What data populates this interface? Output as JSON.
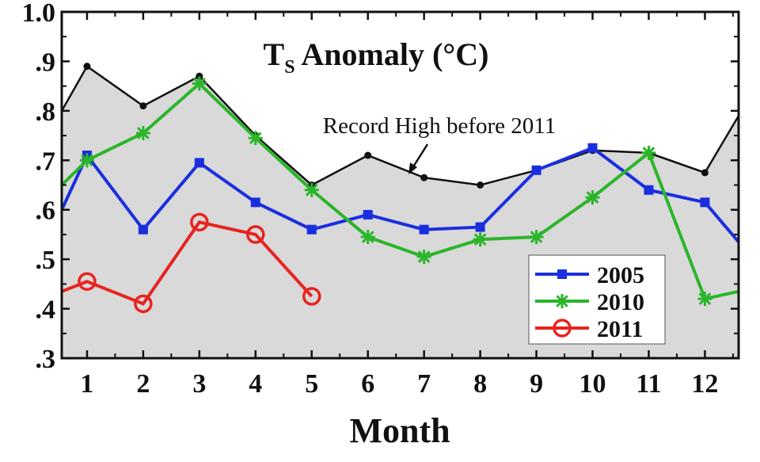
{
  "chart_data": {
    "type": "line",
    "title": {
      "prefix": "T",
      "subscript": "S",
      "suffix": " Anomaly (°C)"
    },
    "xlabel": "Month",
    "ylabel": "",
    "xlim": [
      0.55,
      12.6
    ],
    "ylim": [
      0.3,
      1.0
    ],
    "yticks": [
      0.3,
      0.4,
      0.5,
      0.6,
      0.7,
      0.8,
      0.9,
      1.0
    ],
    "ytick_labels": [
      ".3",
      ".4",
      ".5",
      ".6",
      ".7",
      ".8",
      ".9",
      "1.0"
    ],
    "xticks": [
      1,
      2,
      3,
      4,
      5,
      6,
      7,
      8,
      9,
      10,
      11,
      12
    ],
    "xtick_labels": [
      "1",
      "2",
      "3",
      "4",
      "5",
      "6",
      "7",
      "8",
      "9",
      "10",
      "11",
      "12"
    ],
    "annotation": "Record High before 2011",
    "legend_position": "bottom-right",
    "record_high": {
      "x": [
        0.55,
        1,
        2,
        3,
        4,
        5,
        6,
        7,
        8,
        9,
        10,
        11,
        12,
        12.6
      ],
      "y": [
        0.8,
        0.89,
        0.81,
        0.87,
        0.75,
        0.65,
        0.71,
        0.665,
        0.65,
        0.68,
        0.72,
        0.715,
        0.675,
        0.79
      ],
      "line_color": "#111111",
      "fill_color": "#d9d9d9"
    },
    "series": [
      {
        "name": "2005",
        "color": "#1a2ee0",
        "marker": "square",
        "x": [
          0.55,
          1,
          2,
          3,
          4,
          5,
          6,
          7,
          8,
          9,
          10,
          11,
          12,
          12.6
        ],
        "y": [
          0.6,
          0.71,
          0.56,
          0.695,
          0.615,
          0.56,
          0.59,
          0.56,
          0.565,
          0.68,
          0.725,
          0.64,
          0.615,
          0.535
        ]
      },
      {
        "name": "2010",
        "color": "#2ab52a",
        "marker": "star",
        "x": [
          0.55,
          1,
          2,
          3,
          4,
          5,
          6,
          7,
          8,
          9,
          10,
          11,
          12,
          12.6
        ],
        "y": [
          0.65,
          0.7,
          0.755,
          0.855,
          0.745,
          0.64,
          0.545,
          0.505,
          0.54,
          0.545,
          0.625,
          0.715,
          0.42,
          0.435
        ]
      },
      {
        "name": "2011",
        "color": "#e8231f",
        "marker": "circle",
        "x": [
          0.55,
          1,
          2,
          3,
          4,
          5
        ],
        "y": [
          0.435,
          0.455,
          0.41,
          0.575,
          0.55,
          0.425
        ]
      }
    ]
  }
}
